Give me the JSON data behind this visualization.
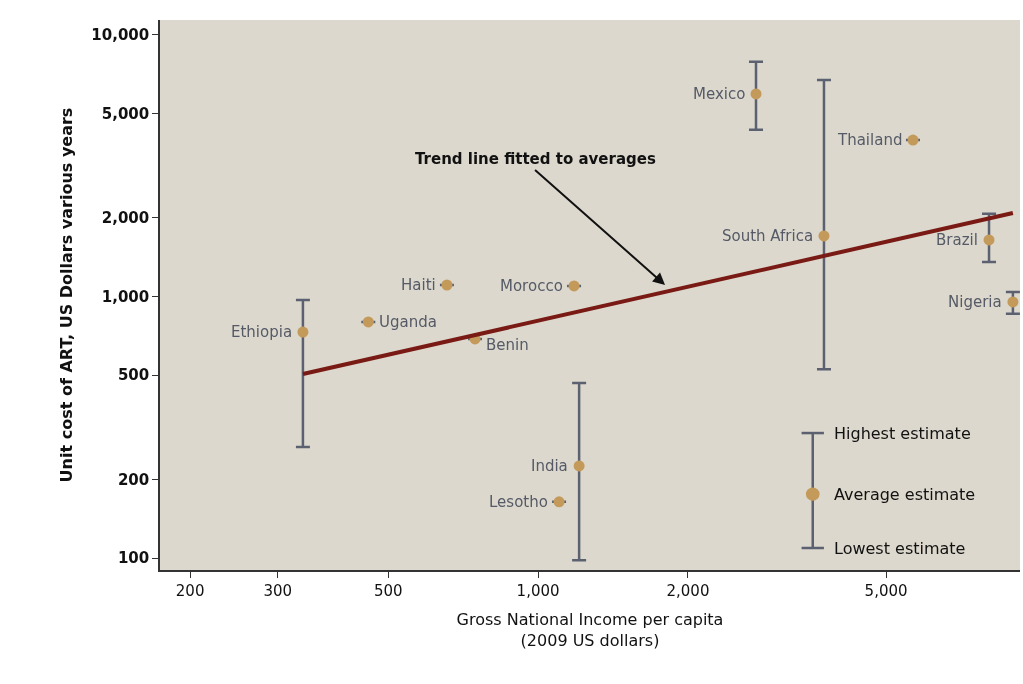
{
  "chart_data": {
    "type": "scatter",
    "xlabel": "Gross National Income per capita\n(2009 US dollars)",
    "ylabel": "Unit cost of ART, US Dollars various years",
    "log": "xy",
    "xlim": [
      174,
      9290
    ],
    "ylim": [
      90,
      11400
    ],
    "xticks": [
      200,
      300,
      500,
      {
        "value": 1000,
        "label": "1,000"
      },
      {
        "value": 2000,
        "label": "2,000"
      },
      {
        "value": 5000,
        "label": "5,000"
      }
    ],
    "yticks": [
      100,
      200,
      500,
      {
        "value": 1000,
        "label": "1,000"
      },
      {
        "value": 2000,
        "label": "2,000"
      },
      {
        "value": 5000,
        "label": "5,000"
      },
      {
        "value": 10000,
        "label": "10,000"
      }
    ],
    "grid": false,
    "series": [
      {
        "marker": "circle",
        "color": "#c49a5a",
        "x": [
          337,
          456,
          656,
          747,
          1181,
          1209,
          1102,
          2740,
          3752,
          5663,
          8050,
          8990
        ],
        "values": [
          731,
          799,
          1106,
          688,
          1097,
          225,
          164,
          5944,
          1703,
          3963,
          1645,
          953
        ],
        "errors": [
          [
            266,
            970
          ],
          null,
          null,
          null,
          null,
          [
            98,
            467
          ],
          null,
          [
            4338,
            7890
          ],
          [
            527,
            6725
          ],
          null,
          [
            1355,
            2070
          ],
          [
            858,
            1040
          ]
        ]
      },
      {
        "type": "line",
        "color": "#7a1a14",
        "x": [
          337,
          8990
        ],
        "values": [
          505,
          2084
        ]
      }
    ],
    "annotations": [
      {
        "text": "Ethiopia",
        "x": 337,
        "y": 731
      },
      {
        "text": "Uganda",
        "x": 456,
        "y": 799
      },
      {
        "text": "Haiti",
        "x": 656,
        "y": 1106
      },
      {
        "text": "Benin",
        "x": 747,
        "y": 688
      },
      {
        "text": "Morocco",
        "x": 1181,
        "y": 1097
      },
      {
        "text": "India",
        "x": 1209,
        "y": 225
      },
      {
        "text": "Lesotho",
        "x": 1102,
        "y": 164
      },
      {
        "text": "Mexico",
        "x": 2740,
        "y": 5944
      },
      {
        "text": "South Africa",
        "x": 3752,
        "y": 1703
      },
      {
        "text": "Thailand",
        "x": 5663,
        "y": 3963
      },
      {
        "text": "Brazil",
        "x": 8050,
        "y": 1645
      },
      {
        "text": "Nigeria",
        "x": 8990,
        "y": 953
      },
      {
        "text": "Trend line fitted to averages",
        "x": 1799,
        "y": 1106
      },
      "Highest estimate",
      "Average estimate",
      "Lowest estimate"
    ]
  }
}
